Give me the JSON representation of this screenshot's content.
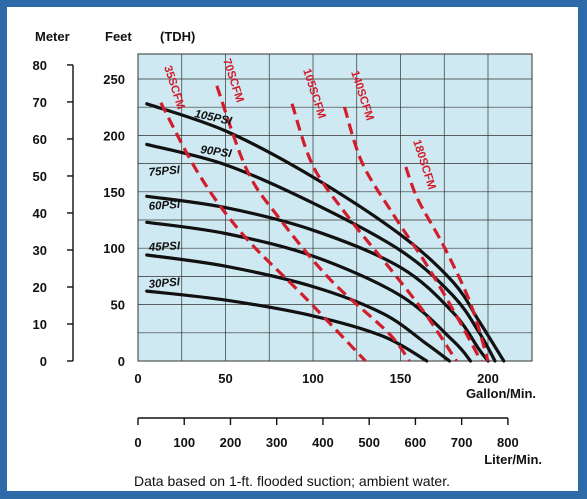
{
  "chart_data": {
    "type": "line",
    "title": "",
    "axis_headers": {
      "meter": "Meter",
      "feet": "Feet",
      "tdh": "(TDH)"
    },
    "x_primary": {
      "label": "Gallon/Min.",
      "ticks": [
        0,
        50,
        100,
        150,
        200
      ],
      "range": [
        0,
        220
      ]
    },
    "x_secondary": {
      "label": "Liter/Min.",
      "ticks": [
        0,
        100,
        200,
        300,
        400,
        500,
        600,
        700,
        800
      ]
    },
    "y_feet": {
      "ticks": [
        0,
        50,
        100,
        150,
        200,
        250
      ],
      "range": [
        0,
        265
      ]
    },
    "y_meter": {
      "ticks": [
        0,
        10,
        20,
        30,
        40,
        50,
        60,
        70,
        80
      ],
      "range": [
        0,
        80.8
      ]
    },
    "grid": true,
    "colors": {
      "background": "#cfe9f2",
      "frame": "#2d6aa7",
      "psi_line": "#111111",
      "scfm_line": "#d21e2c"
    },
    "psi_series": [
      {
        "name": "30PSI",
        "points": [
          [
            5,
            62
          ],
          [
            50,
            54
          ],
          [
            100,
            40
          ],
          [
            140,
            22
          ],
          [
            165,
            0
          ]
        ]
      },
      {
        "name": "45PSI",
        "points": [
          [
            5,
            94
          ],
          [
            50,
            84
          ],
          [
            100,
            66
          ],
          [
            140,
            42
          ],
          [
            165,
            15
          ],
          [
            178,
            0
          ]
        ]
      },
      {
        "name": "60PSI",
        "points": [
          [
            5,
            123
          ],
          [
            50,
            113
          ],
          [
            100,
            93
          ],
          [
            150,
            58
          ],
          [
            180,
            18
          ],
          [
            190,
            0
          ]
        ]
      },
      {
        "name": "75PSI",
        "points": [
          [
            5,
            146
          ],
          [
            50,
            136
          ],
          [
            100,
            116
          ],
          [
            150,
            83
          ],
          [
            180,
            43
          ],
          [
            195,
            10
          ],
          [
            200,
            0
          ]
        ]
      },
      {
        "name": "90PSI",
        "points": [
          [
            5,
            192
          ],
          [
            50,
            174
          ],
          [
            100,
            140
          ],
          [
            150,
            98
          ],
          [
            180,
            58
          ],
          [
            195,
            25
          ],
          [
            204,
            0
          ]
        ]
      },
      {
        "name": "105PSI",
        "points": [
          [
            5,
            228
          ],
          [
            50,
            204
          ],
          [
            100,
            163
          ],
          [
            150,
            112
          ],
          [
            180,
            70
          ],
          [
            195,
            35
          ],
          [
            209,
            0
          ]
        ]
      }
    ],
    "scfm_series": [
      {
        "name": "35SCFM",
        "points": [
          [
            13,
            229
          ],
          [
            35,
            165
          ],
          [
            60,
            112
          ],
          [
            95,
            57
          ],
          [
            130,
            0
          ]
        ]
      },
      {
        "name": "70SCFM",
        "points": [
          [
            45,
            244
          ],
          [
            62,
            170
          ],
          [
            80,
            128
          ],
          [
            110,
            72
          ],
          [
            143,
            25
          ],
          [
            155,
            0
          ]
        ]
      },
      {
        "name": "105SCFM",
        "points": [
          [
            88,
            228
          ],
          [
            100,
            173
          ],
          [
            120,
            128
          ],
          [
            145,
            80
          ],
          [
            165,
            40
          ],
          [
            182,
            0
          ]
        ]
      },
      {
        "name": "140SCFM",
        "points": [
          [
            118,
            225
          ],
          [
            128,
            176
          ],
          [
            145,
            132
          ],
          [
            165,
            85
          ],
          [
            182,
            40
          ],
          [
            196,
            0
          ]
        ]
      },
      {
        "name": "180SCFM",
        "points": [
          [
            153,
            172
          ],
          [
            160,
            143
          ],
          [
            175,
            101
          ],
          [
            190,
            51
          ],
          [
            200,
            0
          ]
        ]
      }
    ],
    "caption": "Data based on 1-ft. flooded suction; ambient water."
  }
}
